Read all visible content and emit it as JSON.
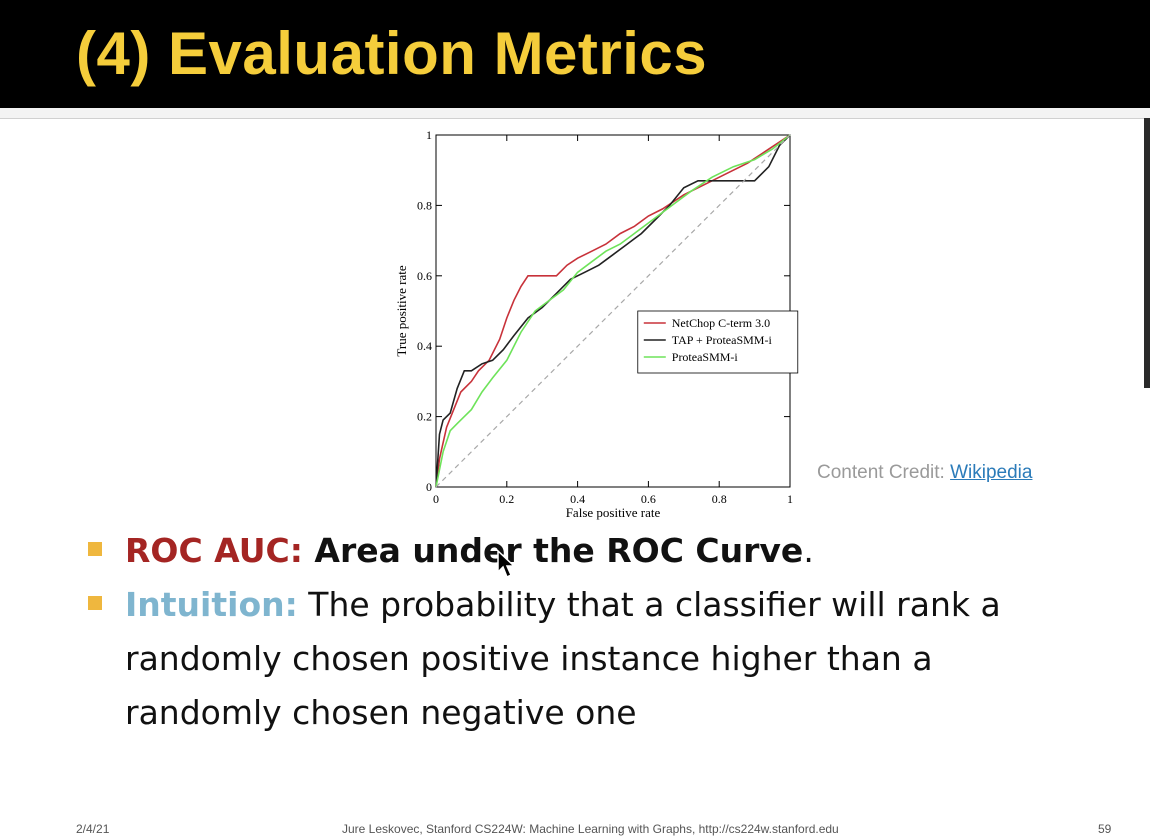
{
  "slide": {
    "title": "(4) Evaluation Metrics",
    "credit_label": "Content Credit: ",
    "credit_link": "Wikipedia",
    "bullets": [
      {
        "label": "ROC AUC:",
        "text": " Area under the ROC Curve",
        "tail": "."
      },
      {
        "label": "Intuition:",
        "text": " The probability that a classifier will rank a randomly chosen positive instance higher than a randomly chosen negative one"
      }
    ],
    "footer": {
      "date": "2/4/21",
      "center": "Jure Leskovec, Stanford CS224W: Machine Learning with Graphs, http://cs224w.stanford.edu",
      "page": "59"
    },
    "colors": {
      "title": "#f5cd3b",
      "roc_label": "#a42523",
      "intuition_label": "#7fb5cf",
      "bullet": "#efb73e"
    }
  },
  "chart_data": {
    "type": "line",
    "xlabel": "False positive rate",
    "ylabel": "True positive rate",
    "xlim": [
      0,
      1
    ],
    "ylim": [
      0,
      1
    ],
    "xticks": [
      "0",
      "0.2",
      "0.4",
      "0.6",
      "0.8",
      "1"
    ],
    "yticks": [
      "0",
      "0.2",
      "0.4",
      "0.6",
      "0.8",
      "1"
    ],
    "legend_position": "center-right",
    "series": [
      {
        "name": "NetChop C-term 3.0",
        "color": "#c8323a",
        "x": [
          0,
          0.01,
          0.03,
          0.05,
          0.07,
          0.1,
          0.12,
          0.15,
          0.18,
          0.2,
          0.22,
          0.24,
          0.26,
          0.3,
          0.34,
          0.37,
          0.4,
          0.44,
          0.48,
          0.52,
          0.56,
          0.6,
          0.64,
          0.7,
          0.76,
          0.82,
          0.88,
          0.94,
          1
        ],
        "y": [
          0,
          0.08,
          0.17,
          0.22,
          0.27,
          0.3,
          0.33,
          0.36,
          0.42,
          0.48,
          0.53,
          0.57,
          0.6,
          0.6,
          0.6,
          0.63,
          0.65,
          0.67,
          0.69,
          0.72,
          0.74,
          0.77,
          0.79,
          0.83,
          0.86,
          0.89,
          0.92,
          0.96,
          1
        ]
      },
      {
        "name": "TAP + ProteaSMM-i",
        "color": "#222222",
        "x": [
          0,
          0.01,
          0.02,
          0.04,
          0.06,
          0.08,
          0.1,
          0.13,
          0.16,
          0.19,
          0.22,
          0.26,
          0.3,
          0.34,
          0.38,
          0.42,
          0.46,
          0.5,
          0.54,
          0.58,
          0.62,
          0.66,
          0.7,
          0.74,
          0.78,
          0.84,
          0.9,
          0.94,
          0.97,
          1
        ],
        "y": [
          0,
          0.15,
          0.19,
          0.21,
          0.28,
          0.33,
          0.33,
          0.35,
          0.36,
          0.39,
          0.43,
          0.48,
          0.51,
          0.55,
          0.59,
          0.61,
          0.63,
          0.66,
          0.69,
          0.72,
          0.76,
          0.8,
          0.85,
          0.87,
          0.87,
          0.87,
          0.87,
          0.91,
          0.97,
          1
        ]
      },
      {
        "name": "ProteaSMM-i",
        "color": "#6ee35a",
        "x": [
          0,
          0.02,
          0.04,
          0.06,
          0.08,
          0.1,
          0.13,
          0.16,
          0.2,
          0.24,
          0.28,
          0.32,
          0.36,
          0.4,
          0.44,
          0.48,
          0.52,
          0.56,
          0.6,
          0.64,
          0.68,
          0.72,
          0.78,
          0.84,
          0.9,
          0.95,
          1
        ],
        "y": [
          0,
          0.1,
          0.16,
          0.18,
          0.2,
          0.22,
          0.27,
          0.31,
          0.36,
          0.44,
          0.5,
          0.53,
          0.56,
          0.61,
          0.64,
          0.67,
          0.69,
          0.72,
          0.75,
          0.78,
          0.81,
          0.84,
          0.88,
          0.91,
          0.93,
          0.96,
          1
        ]
      },
      {
        "name": "",
        "color": "#a8a8a8",
        "dashed": true,
        "x": [
          0,
          1
        ],
        "y": [
          0,
          1
        ]
      }
    ]
  }
}
